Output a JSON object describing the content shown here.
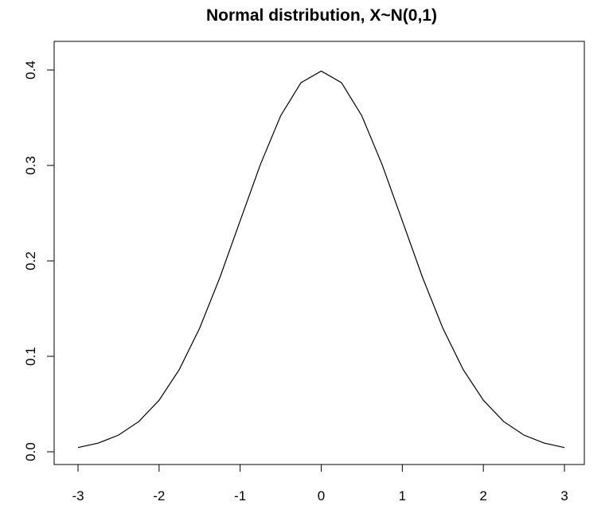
{
  "chart_data": {
    "type": "line",
    "title": "Normal distribution, X~N(0,1)",
    "xlabel": "",
    "ylabel": "",
    "xlim": [
      -3,
      3
    ],
    "ylim": [
      0,
      0.4
    ],
    "x_ticks": [
      -3,
      -2,
      -1,
      0,
      1,
      2,
      3
    ],
    "y_ticks": [
      0.0,
      0.1,
      0.2,
      0.3,
      0.4
    ],
    "x_tick_labels": [
      "-3",
      "-2",
      "-1",
      "0",
      "1",
      "2",
      "3"
    ],
    "y_tick_labels": [
      "0.0",
      "0.1",
      "0.2",
      "0.3",
      "0.4"
    ],
    "grid": false,
    "line_color": "#000000",
    "series": [
      {
        "x": [
          -3.0,
          -2.75,
          -2.5,
          -2.25,
          -2.0,
          -1.75,
          -1.5,
          -1.25,
          -1.0,
          -0.75,
          -0.5,
          -0.25,
          0.0,
          0.25,
          0.5,
          0.75,
          1.0,
          1.25,
          1.5,
          1.75,
          2.0,
          2.25,
          2.5,
          2.75,
          3.0
        ],
        "y": [
          0.0044,
          0.0091,
          0.0175,
          0.0317,
          0.054,
          0.0863,
          0.1295,
          0.1826,
          0.242,
          0.3011,
          0.3521,
          0.3867,
          0.3989,
          0.3867,
          0.3521,
          0.3011,
          0.242,
          0.1826,
          0.1295,
          0.0863,
          0.054,
          0.0317,
          0.0175,
          0.0091,
          0.0044
        ]
      }
    ]
  }
}
